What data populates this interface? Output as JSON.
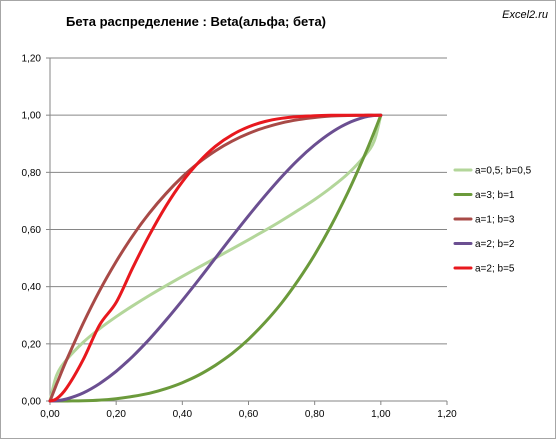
{
  "watermark": "Excel2.ru",
  "chart_data": {
    "type": "line",
    "title": "Бета распределение : Beta(альфа; бета)",
    "xlabel": "",
    "ylabel": "",
    "xlim": [
      0,
      1.2
    ],
    "ylim": [
      0,
      1.2
    ],
    "x_ticks": [
      "0,00",
      "0,20",
      "0,40",
      "0,60",
      "0,80",
      "1,00",
      "1,20"
    ],
    "y_ticks": [
      "0,00",
      "0,20",
      "0,40",
      "0,60",
      "0,80",
      "1,00",
      "1,20"
    ],
    "grid": "horizontal",
    "legend_position": "right",
    "x": [
      0,
      0.02,
      0.05,
      0.1,
      0.15,
      0.2,
      0.25,
      0.3,
      0.35,
      0.4,
      0.45,
      0.5,
      0.55,
      0.6,
      0.65,
      0.7,
      0.75,
      0.8,
      0.85,
      0.9,
      0.95,
      0.98,
      1
    ],
    "series": [
      {
        "name": "a=0,5; b=0,5",
        "color": "#b3d69a",
        "values": [
          0,
          0.09,
          0.144,
          0.205,
          0.253,
          0.295,
          0.333,
          0.369,
          0.403,
          0.436,
          0.468,
          0.5,
          0.532,
          0.564,
          0.597,
          0.631,
          0.667,
          0.705,
          0.747,
          0.795,
          0.856,
          0.91,
          1
        ]
      },
      {
        "name": "a=3; b=1",
        "color": "#6b9a3b",
        "values": [
          0,
          8e-06,
          0.000125,
          0.001,
          0.003,
          0.008,
          0.016,
          0.027,
          0.043,
          0.064,
          0.091,
          0.125,
          0.166,
          0.216,
          0.275,
          0.343,
          0.422,
          0.512,
          0.614,
          0.729,
          0.857,
          0.941,
          1
        ]
      },
      {
        "name": "a=1; b=3",
        "color": "#a84a47",
        "values": [
          0,
          0.059,
          0.143,
          0.271,
          0.386,
          0.488,
          0.578,
          0.657,
          0.725,
          0.784,
          0.834,
          0.875,
          0.909,
          0.936,
          0.957,
          0.973,
          0.984,
          0.992,
          0.997,
          0.999,
          1.0,
          1.0,
          1
        ]
      },
      {
        "name": "a=2; b=2",
        "color": "#6b4f91",
        "values": [
          0,
          0.001,
          0.007,
          0.028,
          0.061,
          0.104,
          0.156,
          0.216,
          0.282,
          0.352,
          0.425,
          0.5,
          0.575,
          0.648,
          0.718,
          0.784,
          0.844,
          0.896,
          0.939,
          0.972,
          0.993,
          0.999,
          1
        ]
      },
      {
        "name": "a=2; b=5",
        "color": "#e8181e",
        "values": [
          0,
          0.008,
          0.045,
          0.144,
          0.266,
          0.345,
          0.466,
          0.58,
          0.681,
          0.767,
          0.836,
          0.891,
          0.931,
          0.959,
          0.978,
          0.989,
          0.995,
          0.998,
          0.9995,
          0.9999,
          1.0,
          1.0,
          1
        ]
      }
    ]
  }
}
